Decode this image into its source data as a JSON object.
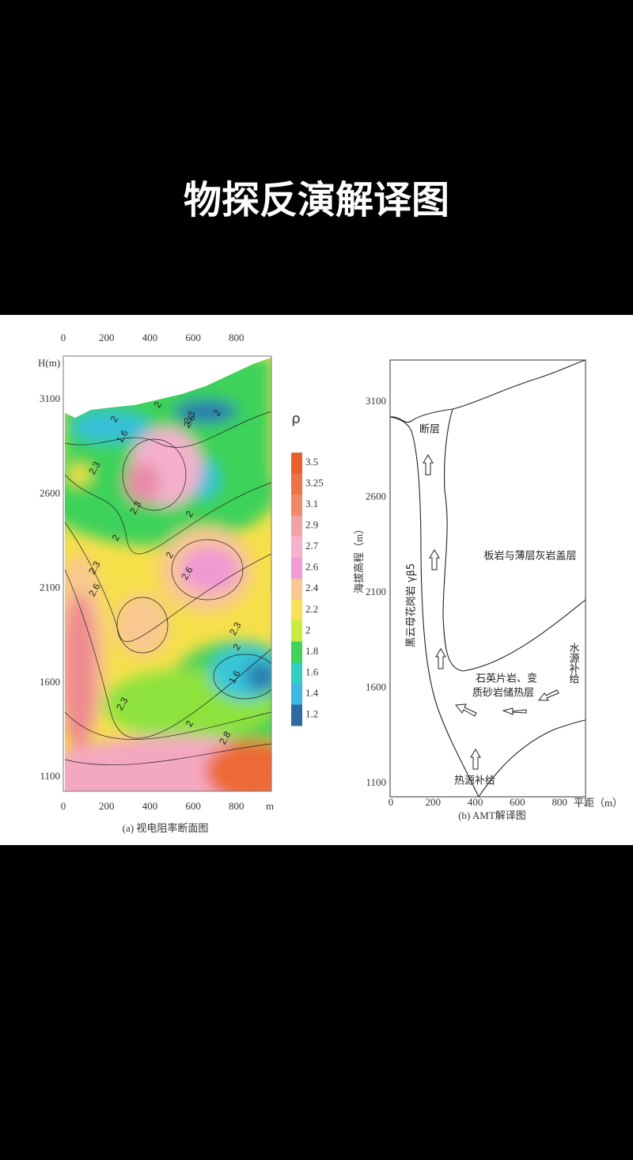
{
  "title": "物探反演解译图",
  "panel_a": {
    "x_ticks_top": [
      0,
      200,
      400,
      600,
      800
    ],
    "y_axis_label": "H(m)",
    "y_ticks": [
      3100,
      2600,
      2100,
      1600,
      1100
    ],
    "x_ticks_bottom": [
      0,
      200,
      400,
      600,
      800
    ],
    "x_unit": "m",
    "caption": "(a) 视电阻率断面图",
    "legend_title": "ρ",
    "legend_ticks": [
      3.5,
      3.25,
      3.1,
      2.9,
      2.7,
      2.6,
      2.4,
      2.2,
      2,
      1.8,
      1.6,
      1.4,
      1.2
    ],
    "contour_labels": [
      "2",
      "2",
      "2.3",
      "1.6",
      "2",
      "2",
      "2.6",
      "2.3",
      "2",
      "2.3",
      "2.3",
      "2.6",
      "2",
      "2.6",
      "2.3",
      "2",
      "1.6",
      "2.3",
      "2",
      "2.8"
    ]
  },
  "panel_b": {
    "y_axis_label": "海拔高程（m）",
    "y_ticks": [
      3100,
      2600,
      2100,
      1600,
      1100
    ],
    "x_ticks": [
      0,
      200,
      400,
      600,
      800
    ],
    "x_axis_label": "平距（m）",
    "caption": "(b) AMT解译图",
    "labels": {
      "fault": "断层",
      "cap": "板岩与薄层灰岩盖层",
      "granite": "黑云母花岗岩 γβ5",
      "water": "水源补给",
      "reservoir_1": "石英片岩、变",
      "reservoir_2": "质砂岩储热层",
      "heat": "热源补给"
    }
  }
}
